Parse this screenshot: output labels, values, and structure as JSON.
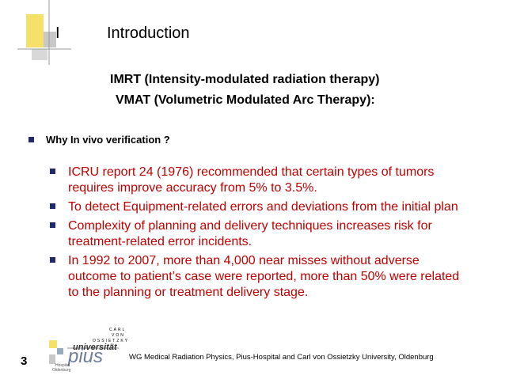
{
  "header": {
    "number": "I",
    "title": "Introduction"
  },
  "subtitles": [
    "IMRT (Intensity-modulated radiation therapy)",
    "VMAT (Volumetric Modulated Arc Therapy):"
  ],
  "question": "Why In vivo verification ?",
  "bullets": [
    [
      "ICRU report 24 (1976) recommended that certain types of tumors",
      "requires improve accuracy from 5% to 3.5%."
    ],
    [
      "To detect Equipment-related errors and deviations from the initial plan"
    ],
    [
      "Complexity of planning and delivery techniques increases risk for",
      "treatment-related error incidents."
    ],
    [
      "In 1992 to 2007, more than 4,000 near misses without adverse",
      "outcome to patient’s case were reported, more than 50% were related",
      "to the planning or treatment delivery stage."
    ]
  ],
  "footer": {
    "page": "3",
    "text": "WG  Medical Radiation Physics, Pius-Hospital and Carl von Ossietzky University, Oldenburg",
    "logo": {
      "line1": "CARL",
      "line2": "VON",
      "line3": "OSSIETZKY",
      "university": "universität",
      "pius": "pius",
      "hospital": "Hospital",
      "city": "Oldenburg"
    }
  }
}
